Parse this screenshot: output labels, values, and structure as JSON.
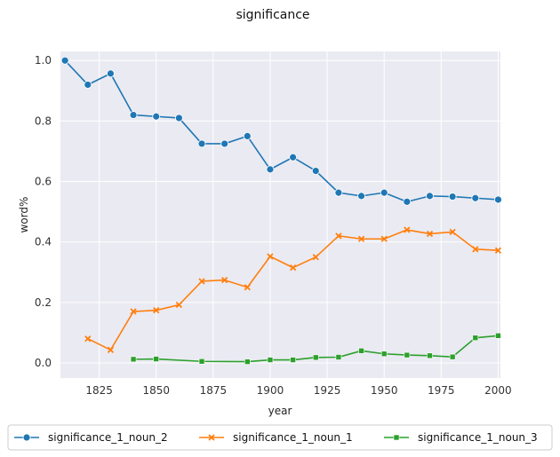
{
  "chart_data": {
    "type": "line",
    "title": "significance",
    "xlabel": "year",
    "ylabel": "word%",
    "xlim": [
      1808,
      2001
    ],
    "ylim": [
      -0.05,
      1.03
    ],
    "xticks": [
      1825,
      1850,
      1875,
      1900,
      1925,
      1950,
      1975,
      2000
    ],
    "yticks": [
      0.0,
      0.2,
      0.4,
      0.6,
      0.8,
      1.0
    ],
    "xtick_labels": [
      "1825",
      "1850",
      "1875",
      "1900",
      "1925",
      "1950",
      "1975",
      "2000"
    ],
    "ytick_labels": [
      "0.0",
      "0.2",
      "0.4",
      "0.6",
      "0.8",
      "1.0"
    ],
    "grid": true,
    "background": "#eaeaf2",
    "legend_position": "bottom",
    "series": [
      {
        "name": "significance_1_noun_2",
        "color": "#1f77b4",
        "marker": "circle",
        "x": [
          1810,
          1820,
          1830,
          1840,
          1850,
          1860,
          1870,
          1880,
          1890,
          1900,
          1910,
          1920,
          1930,
          1940,
          1950,
          1960,
          1970,
          1980,
          1990,
          2000
        ],
        "y": [
          1.0,
          0.92,
          0.957,
          0.82,
          0.815,
          0.81,
          0.725,
          0.725,
          0.75,
          0.64,
          0.68,
          0.635,
          0.563,
          0.552,
          0.563,
          0.533,
          0.552,
          0.55,
          0.545,
          0.54
        ]
      },
      {
        "name": "significance_1_noun_1",
        "color": "#ff7f0e",
        "marker": "x",
        "x": [
          1820,
          1830,
          1840,
          1850,
          1860,
          1870,
          1880,
          1890,
          1900,
          1910,
          1920,
          1930,
          1940,
          1950,
          1960,
          1970,
          1980,
          1990,
          2000
        ],
        "y": [
          0.08,
          0.043,
          0.17,
          0.174,
          0.192,
          0.27,
          0.274,
          0.25,
          0.352,
          0.315,
          0.35,
          0.42,
          0.41,
          0.41,
          0.44,
          0.427,
          0.433,
          0.376,
          0.372
        ]
      },
      {
        "name": "significance_1_noun_3",
        "color": "#2ca02c",
        "marker": "square",
        "x": [
          1840,
          1850,
          1870,
          1890,
          1900,
          1910,
          1920,
          1930,
          1940,
          1950,
          1960,
          1970,
          1980,
          1990,
          2000
        ],
        "y": [
          0.012,
          0.013,
          0.005,
          0.004,
          0.01,
          0.01,
          0.018,
          0.019,
          0.04,
          0.03,
          0.026,
          0.024,
          0.02,
          0.083,
          0.09
        ]
      }
    ]
  }
}
